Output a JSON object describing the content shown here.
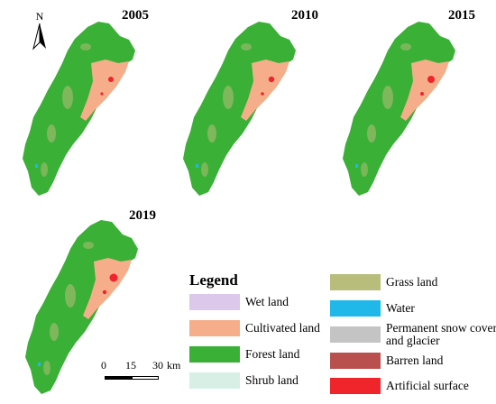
{
  "years": [
    "2005",
    "2010",
    "2015",
    "2019"
  ],
  "north": "N",
  "legend": {
    "title": "Legend",
    "items": [
      {
        "label": "Wet land",
        "color": "#dcc8ea"
      },
      {
        "label": "Cultivated land",
        "color": "#f6ae8a"
      },
      {
        "label": "Forest land",
        "color": "#3ab036"
      },
      {
        "label": "Shrub land",
        "color": "#d8efe6"
      },
      {
        "label": "Grass land",
        "color": "#b8bd7c"
      },
      {
        "label": "Water",
        "color": "#1fb8e8"
      },
      {
        "label": "Permanent snow cover and glacier",
        "color": "#c4c4c4"
      },
      {
        "label": "Barren land",
        "color": "#b9504e"
      },
      {
        "label": "Artificial surface",
        "color": "#f0252c"
      }
    ]
  },
  "scale": {
    "ticks": [
      "0",
      "15",
      "30"
    ],
    "unit": "km"
  }
}
